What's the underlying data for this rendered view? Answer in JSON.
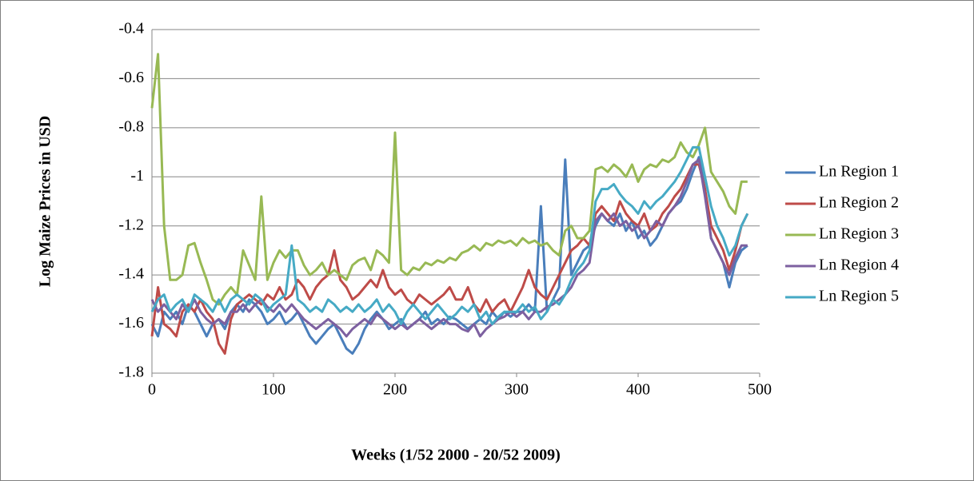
{
  "chart_data": {
    "type": "line",
    "x_label": "Weeks (1/52 2000 - 20/52 2009)",
    "y_label": "Log Maize Prices in USD",
    "xlim": [
      0,
      500
    ],
    "xticks": [
      0,
      100,
      200,
      300,
      400,
      500
    ],
    "ylim": [
      -1.8,
      -0.4
    ],
    "yticks": [
      -1.8,
      -1.6,
      -1.4,
      -1.2,
      -1,
      -0.8,
      -0.6,
      -0.4
    ],
    "grid": true,
    "legend": "right",
    "x": [
      0,
      5,
      10,
      15,
      20,
      25,
      30,
      35,
      40,
      45,
      50,
      55,
      60,
      65,
      70,
      75,
      80,
      85,
      90,
      95,
      100,
      105,
      110,
      115,
      120,
      125,
      130,
      135,
      140,
      145,
      150,
      155,
      160,
      165,
      170,
      175,
      180,
      185,
      190,
      195,
      200,
      205,
      210,
      215,
      220,
      225,
      230,
      235,
      240,
      245,
      250,
      255,
      260,
      265,
      270,
      275,
      280,
      285,
      290,
      295,
      300,
      305,
      310,
      315,
      320,
      325,
      330,
      335,
      340,
      345,
      350,
      355,
      360,
      365,
      370,
      375,
      380,
      385,
      390,
      395,
      400,
      405,
      410,
      415,
      420,
      425,
      430,
      435,
      440,
      445,
      450,
      455,
      460,
      465,
      470,
      475,
      480,
      485,
      490
    ],
    "series": [
      {
        "name": "Ln Region 1",
        "color": "#4a7ebb",
        "values": [
          -1.6,
          -1.65,
          -1.55,
          -1.58,
          -1.55,
          -1.6,
          -1.52,
          -1.55,
          -1.6,
          -1.65,
          -1.6,
          -1.58,
          -1.62,
          -1.55,
          -1.52,
          -1.55,
          -1.5,
          -1.52,
          -1.55,
          -1.6,
          -1.58,
          -1.55,
          -1.6,
          -1.58,
          -1.55,
          -1.6,
          -1.65,
          -1.68,
          -1.65,
          -1.62,
          -1.6,
          -1.65,
          -1.7,
          -1.72,
          -1.68,
          -1.62,
          -1.58,
          -1.55,
          -1.58,
          -1.62,
          -1.6,
          -1.58,
          -1.62,
          -1.6,
          -1.58,
          -1.55,
          -1.6,
          -1.58,
          -1.6,
          -1.57,
          -1.58,
          -1.6,
          -1.62,
          -1.6,
          -1.58,
          -1.6,
          -1.55,
          -1.58,
          -1.55,
          -1.57,
          -1.55,
          -1.55,
          -1.52,
          -1.55,
          -1.12,
          -1.55,
          -1.5,
          -1.45,
          -0.93,
          -1.4,
          -1.35,
          -1.3,
          -1.28,
          -1.2,
          -1.15,
          -1.18,
          -1.2,
          -1.15,
          -1.22,
          -1.18,
          -1.25,
          -1.22,
          -1.28,
          -1.25,
          -1.2,
          -1.15,
          -1.12,
          -1.1,
          -1.05,
          -0.98,
          -0.92,
          -1.05,
          -1.25,
          -1.3,
          -1.35,
          -1.45,
          -1.35,
          -1.3,
          -1.28
        ]
      },
      {
        "name": "Ln Region 2",
        "color": "#be4b48",
        "values": [
          -1.65,
          -1.45,
          -1.6,
          -1.62,
          -1.65,
          -1.55,
          -1.52,
          -1.55,
          -1.5,
          -1.55,
          -1.58,
          -1.68,
          -1.72,
          -1.58,
          -1.52,
          -1.5,
          -1.48,
          -1.5,
          -1.52,
          -1.48,
          -1.5,
          -1.45,
          -1.5,
          -1.48,
          -1.42,
          -1.45,
          -1.5,
          -1.45,
          -1.42,
          -1.4,
          -1.3,
          -1.42,
          -1.45,
          -1.5,
          -1.48,
          -1.45,
          -1.42,
          -1.45,
          -1.38,
          -1.45,
          -1.48,
          -1.46,
          -1.5,
          -1.52,
          -1.48,
          -1.5,
          -1.52,
          -1.5,
          -1.48,
          -1.45,
          -1.5,
          -1.5,
          -1.45,
          -1.52,
          -1.55,
          -1.5,
          -1.55,
          -1.52,
          -1.5,
          -1.55,
          -1.5,
          -1.45,
          -1.38,
          -1.45,
          -1.48,
          -1.5,
          -1.45,
          -1.4,
          -1.35,
          -1.3,
          -1.28,
          -1.25,
          -1.28,
          -1.15,
          -1.12,
          -1.15,
          -1.18,
          -1.1,
          -1.15,
          -1.18,
          -1.2,
          -1.15,
          -1.22,
          -1.2,
          -1.15,
          -1.12,
          -1.08,
          -1.05,
          -1,
          -0.95,
          -0.95,
          -1.05,
          -1.2,
          -1.25,
          -1.3,
          -1.38,
          -1.3,
          -1.2,
          -1.15
        ]
      },
      {
        "name": "Ln Region 3",
        "color": "#98b954",
        "values": [
          -0.72,
          -0.5,
          -1.2,
          -1.42,
          -1.42,
          -1.4,
          -1.28,
          -1.27,
          -1.35,
          -1.42,
          -1.5,
          -1.52,
          -1.48,
          -1.45,
          -1.48,
          -1.3,
          -1.36,
          -1.42,
          -1.08,
          -1.42,
          -1.35,
          -1.3,
          -1.33,
          -1.3,
          -1.3,
          -1.36,
          -1.4,
          -1.38,
          -1.35,
          -1.4,
          -1.38,
          -1.4,
          -1.42,
          -1.36,
          -1.34,
          -1.33,
          -1.38,
          -1.3,
          -1.32,
          -1.35,
          -0.82,
          -1.38,
          -1.4,
          -1.37,
          -1.38,
          -1.35,
          -1.36,
          -1.34,
          -1.35,
          -1.33,
          -1.34,
          -1.31,
          -1.3,
          -1.28,
          -1.3,
          -1.27,
          -1.28,
          -1.26,
          -1.27,
          -1.26,
          -1.28,
          -1.25,
          -1.27,
          -1.26,
          -1.28,
          -1.27,
          -1.3,
          -1.32,
          -1.22,
          -1.2,
          -1.25,
          -1.25,
          -1.22,
          -0.97,
          -0.96,
          -0.98,
          -0.95,
          -0.97,
          -1,
          -0.95,
          -1.02,
          -0.97,
          -0.95,
          -0.96,
          -0.93,
          -0.94,
          -0.92,
          -0.86,
          -0.9,
          -0.92,
          -0.87,
          -0.8,
          -0.98,
          -1.02,
          -1.06,
          -1.12,
          -1.15,
          -1.02,
          -1.02
        ]
      },
      {
        "name": "Ln Region 4",
        "color": "#7d60a0",
        "values": [
          -1.5,
          -1.55,
          -1.52,
          -1.55,
          -1.58,
          -1.52,
          -1.55,
          -1.5,
          -1.55,
          -1.58,
          -1.6,
          -1.58,
          -1.6,
          -1.55,
          -1.55,
          -1.52,
          -1.55,
          -1.52,
          -1.5,
          -1.53,
          -1.55,
          -1.52,
          -1.55,
          -1.52,
          -1.55,
          -1.58,
          -1.6,
          -1.62,
          -1.6,
          -1.58,
          -1.6,
          -1.62,
          -1.65,
          -1.62,
          -1.6,
          -1.58,
          -1.6,
          -1.56,
          -1.58,
          -1.6,
          -1.62,
          -1.6,
          -1.62,
          -1.6,
          -1.58,
          -1.6,
          -1.62,
          -1.6,
          -1.58,
          -1.6,
          -1.6,
          -1.62,
          -1.63,
          -1.6,
          -1.65,
          -1.62,
          -1.6,
          -1.58,
          -1.57,
          -1.55,
          -1.57,
          -1.55,
          -1.58,
          -1.55,
          -1.55,
          -1.53,
          -1.52,
          -1.5,
          -1.48,
          -1.45,
          -1.4,
          -1.38,
          -1.35,
          -1.18,
          -1.15,
          -1.18,
          -1.15,
          -1.2,
          -1.18,
          -1.22,
          -1.2,
          -1.25,
          -1.22,
          -1.18,
          -1.2,
          -1.15,
          -1.12,
          -1.08,
          -1.02,
          -0.95,
          -0.93,
          -1.08,
          -1.25,
          -1.3,
          -1.35,
          -1.4,
          -1.33,
          -1.28,
          -1.28
        ]
      },
      {
        "name": "Ln Region 5",
        "color": "#46aac5",
        "values": [
          -1.55,
          -1.5,
          -1.48,
          -1.55,
          -1.52,
          -1.5,
          -1.55,
          -1.48,
          -1.5,
          -1.52,
          -1.55,
          -1.5,
          -1.55,
          -1.5,
          -1.48,
          -1.5,
          -1.52,
          -1.48,
          -1.5,
          -1.55,
          -1.52,
          -1.5,
          -1.48,
          -1.28,
          -1.5,
          -1.52,
          -1.55,
          -1.53,
          -1.55,
          -1.5,
          -1.52,
          -1.55,
          -1.53,
          -1.55,
          -1.52,
          -1.55,
          -1.53,
          -1.5,
          -1.55,
          -1.52,
          -1.55,
          -1.6,
          -1.55,
          -1.52,
          -1.55,
          -1.58,
          -1.55,
          -1.52,
          -1.55,
          -1.58,
          -1.56,
          -1.53,
          -1.55,
          -1.52,
          -1.58,
          -1.55,
          -1.6,
          -1.57,
          -1.55,
          -1.55,
          -1.55,
          -1.52,
          -1.55,
          -1.53,
          -1.58,
          -1.55,
          -1.5,
          -1.52,
          -1.48,
          -1.42,
          -1.38,
          -1.35,
          -1.3,
          -1.1,
          -1.05,
          -1.05,
          -1.03,
          -1.07,
          -1.1,
          -1.12,
          -1.15,
          -1.1,
          -1.13,
          -1.1,
          -1.08,
          -1.05,
          -1.02,
          -0.98,
          -0.93,
          -0.88,
          -0.88,
          -1,
          -1.12,
          -1.2,
          -1.25,
          -1.32,
          -1.28,
          -1.2,
          -1.15
        ]
      }
    ]
  }
}
